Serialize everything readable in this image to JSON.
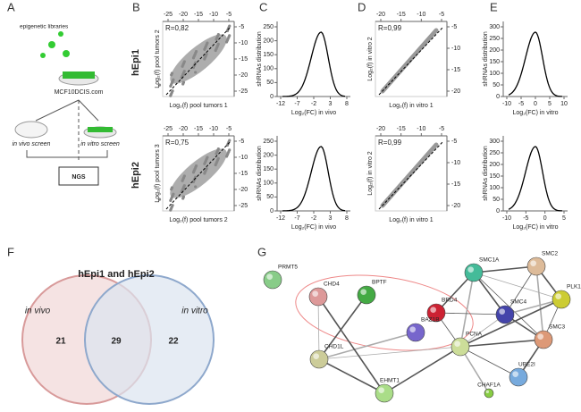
{
  "A": {
    "label": "A",
    "libraries": "epigenetic libraries",
    "cells": "MCF10DCIS.com",
    "in_vivo": "in vivo screen",
    "in_vitro": "in vitro screen",
    "ngs": "NGS"
  },
  "B": {
    "label": "B",
    "row_labels": [
      "hEpi1",
      "hEpi2"
    ],
    "plots": [
      {
        "r": "R=0,82",
        "ylabel": "Log₂(f) pool tumors 2",
        "xlabel": "Log₂(f) pool tumors 1",
        "xticks": [
          -25,
          -20,
          -15,
          -10,
          -5
        ],
        "yticks": [
          -5,
          -10,
          -15,
          -20,
          -25
        ]
      },
      {
        "r": "R=0,75",
        "ylabel": "Log₂(f) pool tumors 3",
        "xlabel": "Log₂(f) pool tumors 2",
        "xticks": [
          -25,
          -20,
          -15,
          -10,
          -5
        ],
        "yticks": [
          -5,
          -10,
          -15,
          -20,
          -25
        ]
      }
    ]
  },
  "C": {
    "label": "C",
    "plots": [
      {
        "ylabel": "shRNAs distribution",
        "xlabel": "Log₂(FC) in vivo",
        "xticks": [
          -12,
          -7,
          -2,
          3,
          8
        ],
        "yticks": [
          0,
          50,
          100,
          150,
          200,
          250
        ]
      },
      {
        "ylabel": "shRNAs distribution",
        "xlabel": "Log₂(FC) in vivo",
        "xticks": [
          -12,
          -7,
          -2,
          3,
          8
        ],
        "yticks": [
          0,
          50,
          100,
          150,
          200,
          250
        ]
      }
    ]
  },
  "D": {
    "label": "D",
    "plots": [
      {
        "r": "R=0,99",
        "ylabel": "Log₂(f) in vitro 2",
        "xlabel": "Log₂(f) in vitro 1",
        "xticks": [
          -20,
          -15,
          -10,
          -5
        ],
        "yticks": [
          -5,
          -10,
          -15,
          -20
        ]
      },
      {
        "r": "R=0,99",
        "ylabel": "Log₂(f) in vitro 2",
        "xlabel": "Log₂(f) in vitro 1",
        "xticks": [
          -20,
          -15,
          -10,
          -5
        ],
        "yticks": [
          -5,
          -10,
          -15,
          -20
        ]
      }
    ]
  },
  "E": {
    "label": "E",
    "plots": [
      {
        "ylabel": "shRNAs distribution",
        "xlabel": "Log₂(FC) in vitro",
        "xticks": [
          -10,
          -5,
          0,
          5,
          10
        ],
        "yticks": [
          0,
          50,
          100,
          150,
          200,
          250,
          300
        ]
      },
      {
        "ylabel": "shRNAs distribution",
        "xlabel": "Log₂(FC) in vitro",
        "xticks": [
          -10,
          -5,
          0,
          5
        ],
        "yticks": [
          0,
          50,
          100,
          150,
          200,
          250,
          300
        ]
      }
    ]
  },
  "F": {
    "label": "F",
    "title": "hEpi1 and hEpi2",
    "left": "in vivo",
    "right": "in vitro",
    "counts": [
      21,
      29,
      22
    ]
  },
  "G": {
    "label": "G",
    "nodes": [
      "PRMT5",
      "CHD4",
      "BPTF",
      "BRD4",
      "BAZ1B",
      "CHD1L",
      "EHMT1",
      "PCNA",
      "SMC1A",
      "SMC2",
      "PLK1",
      "SMC4",
      "SMC3",
      "UBE2I",
      "CHAF1A"
    ]
  }
}
